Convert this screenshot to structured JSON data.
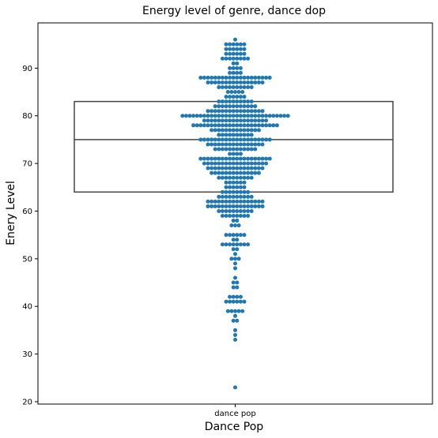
{
  "chart_data": {
    "type": "swarm+box",
    "title": "Energy level of genre, dance dop",
    "xlabel": "Dance Pop",
    "ylabel": "Enery Level",
    "categories": [
      "dance pop"
    ],
    "ylim": [
      19.5,
      99.5
    ],
    "yticks": [
      20,
      30,
      40,
      50,
      60,
      70,
      80,
      90
    ],
    "box": {
      "q1": 64,
      "median": 75,
      "q3": 83
    },
    "dot_color": "#1f77b4",
    "box_color": "#444444",
    "values": [
      96,
      95,
      95,
      95,
      95,
      95,
      95,
      94,
      94,
      94,
      94,
      94,
      94,
      93,
      93,
      93,
      93,
      93,
      93,
      92,
      92,
      92,
      92,
      92,
      92,
      92,
      92,
      91,
      91,
      90,
      90,
      90,
      90,
      89,
      89,
      89,
      89,
      88,
      88,
      88,
      88,
      88,
      88,
      88,
      88,
      88,
      88,
      88,
      88,
      88,
      88,
      88,
      88,
      88,
      88,
      88,
      88,
      87,
      87,
      87,
      87,
      87,
      87,
      87,
      87,
      87,
      87,
      87,
      87,
      87,
      87,
      87,
      87,
      86,
      86,
      86,
      86,
      86,
      86,
      86,
      86,
      86,
      86,
      85,
      85,
      85,
      85,
      85,
      84,
      84,
      84,
      84,
      84,
      84,
      83,
      83,
      83,
      83,
      83,
      83,
      83,
      83,
      83,
      83,
      82,
      82,
      82,
      82,
      82,
      82,
      82,
      82,
      82,
      82,
      82,
      82,
      81,
      81,
      81,
      81,
      81,
      81,
      81,
      81,
      81,
      81,
      81,
      81,
      81,
      81,
      81,
      81,
      80,
      80,
      80,
      80,
      80,
      80,
      80,
      80,
      80,
      80,
      80,
      80,
      80,
      80,
      80,
      80,
      80,
      80,
      80,
      80,
      80,
      80,
      80,
      80,
      80,
      80,
      80,
      80,
      80,
      80,
      79,
      79,
      79,
      79,
      79,
      79,
      79,
      79,
      79,
      79,
      79,
      79,
      79,
      79,
      79,
      79,
      79,
      79,
      78,
      78,
      78,
      78,
      78,
      78,
      78,
      78,
      78,
      78,
      78,
      78,
      78,
      78,
      78,
      78,
      78,
      78,
      78,
      78,
      78,
      78,
      78,
      78,
      77,
      77,
      77,
      77,
      77,
      77,
      77,
      77,
      77,
      77,
      77,
      77,
      77,
      77,
      76,
      76,
      76,
      76,
      76,
      76,
      76,
      76,
      76,
      76,
      75,
      75,
      75,
      75,
      75,
      75,
      75,
      75,
      75,
      75,
      75,
      75,
      75,
      75,
      75,
      75,
      75,
      75,
      75,
      75,
      74,
      74,
      74,
      74,
      74,
      74,
      74,
      74,
      74,
      74,
      74,
      74,
      74,
      74,
      74,
      74,
      73,
      73,
      73,
      73,
      73,
      73,
      73,
      73,
      73,
      73,
      73,
      73,
      72,
      72,
      72,
      72,
      71,
      71,
      71,
      71,
      71,
      71,
      71,
      71,
      71,
      71,
      71,
      71,
      71,
      71,
      71,
      71,
      71,
      71,
      71,
      71,
      70,
      70,
      70,
      70,
      70,
      70,
      70,
      70,
      70,
      70,
      70,
      70,
      70,
      70,
      70,
      70,
      70,
      70,
      69,
      69,
      69,
      69,
      69,
      69,
      69,
      69,
      69,
      69,
      69,
      69,
      69,
      69,
      69,
      69,
      68,
      68,
      68,
      68,
      68,
      68,
      68,
      68,
      68,
      68,
      68,
      68,
      68,
      68,
      67,
      67,
      67,
      67,
      67,
      67,
      67,
      67,
      67,
      67,
      66,
      66,
      66,
      66,
      66,
      66,
      65,
      65,
      65,
      65,
      65,
      65,
      64,
      64,
      64,
      64,
      64,
      64,
      64,
      64,
      63,
      63,
      63,
      63,
      63,
      63,
      63,
      63,
      63,
      63,
      62,
      62,
      62,
      62,
      62,
      62,
      62,
      62,
      62,
      62,
      62,
      62,
      62,
      62,
      62,
      62,
      61,
      61,
      61,
      61,
      61,
      61,
      61,
      61,
      61,
      61,
      61,
      61,
      61,
      61,
      61,
      61,
      60,
      60,
      60,
      60,
      60,
      60,
      60,
      60,
      60,
      60,
      59,
      59,
      59,
      59,
      59,
      59,
      59,
      59,
      58,
      58,
      57,
      57,
      57,
      55,
      55,
      55,
      55,
      55,
      55,
      54,
      54,
      53,
      53,
      53,
      53,
      53,
      53,
      53,
      53,
      52,
      52,
      51,
      50,
      50,
      50,
      49,
      48,
      46,
      45,
      45,
      44,
      44,
      42,
      42,
      42,
      42,
      41,
      41,
      41,
      41,
      41,
      41,
      39,
      39,
      39,
      39,
      39,
      38,
      37,
      37,
      35,
      34,
      33,
      23
    ]
  }
}
